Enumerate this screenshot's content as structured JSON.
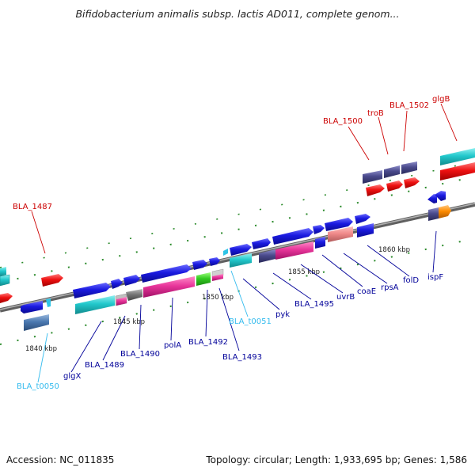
{
  "title": "Bifidobacterium animalis subsp. lactis AD011, complete genom...",
  "footer": {
    "accession": "Accession: NC_011835",
    "summary": "Topology: circular; Length: 1,933,695 bp; Genes: 1,586"
  },
  "colors": {
    "gene_blue": "#1a1ae0",
    "cds_cyan": "#22c8cc",
    "cds_magenta": "#e8359a",
    "cds_red": "#ee1111",
    "cds_slate": "#4a4a8c",
    "rna_cyan": "#2ec4e6",
    "label_red": "#cc0000",
    "label_blue": "#000099",
    "label_cyan": "#33bbee",
    "backbone": "#808080"
  },
  "ticks": [
    "1840 kbp",
    "1845 kbp",
    "1850 kbp",
    "1855 kbp",
    "1860 kbp"
  ],
  "labels": [
    {
      "text": "BLA_1487",
      "color": "red"
    },
    {
      "text": "BLA_1500",
      "color": "red"
    },
    {
      "text": "troB",
      "color": "red"
    },
    {
      "text": "BLA_1502",
      "color": "red"
    },
    {
      "text": "glgB",
      "color": "red"
    },
    {
      "text": "BLA_t0050",
      "color": "cyan"
    },
    {
      "text": "glgX",
      "color": "blue"
    },
    {
      "text": "BLA_1489",
      "color": "blue"
    },
    {
      "text": "BLA_1490",
      "color": "blue"
    },
    {
      "text": "polA",
      "color": "blue"
    },
    {
      "text": "BLA_1492",
      "color": "blue"
    },
    {
      "text": "BLA_1493",
      "color": "blue"
    },
    {
      "text": "BLA_t0051",
      "color": "cyan"
    },
    {
      "text": "pyk",
      "color": "blue"
    },
    {
      "text": "BLA_1495",
      "color": "blue"
    },
    {
      "text": "uvrB",
      "color": "blue"
    },
    {
      "text": "coaE",
      "color": "blue"
    },
    {
      "text": "rpsA",
      "color": "blue"
    },
    {
      "text": "folD",
      "color": "blue"
    },
    {
      "text": "ispF",
      "color": "blue"
    }
  ]
}
